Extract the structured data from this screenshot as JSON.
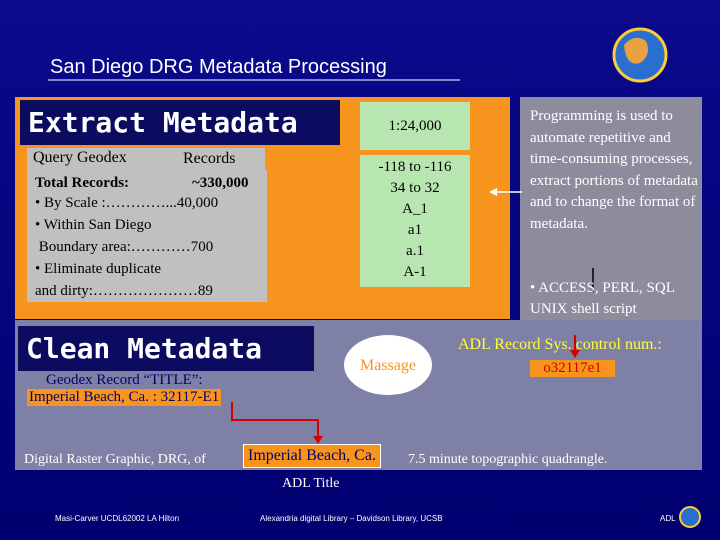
{
  "header": {
    "title": "San Diego DRG Metadata Processing"
  },
  "extract": {
    "title": "Extract Metadata",
    "query": "Query Geodex",
    "records": "Records",
    "total_label": "Total Records:",
    "total_value": "~330,000",
    "lines": [
      "• By Scale :…………...40,000",
      "• Within San Diego",
      " Boundary area:…………700",
      "• Eliminate duplicate",
      "and dirty:…………………89"
    ]
  },
  "scale": "1:24,000",
  "values": [
    "-118 to -116",
    "34 to 32",
    "A_1",
    "a1",
    "a.1",
    "A-1"
  ],
  "notes": {
    "text": "Programming is used to automate repetitive and time-consuming processes, extract portions of metadata and to change the format of metadata.",
    "bullet": "• ACCESS, PERL, SQL UNIX shell script"
  },
  "clean": {
    "title": "Clean Metadata",
    "geodex_label": "Geodex Record “TITLE”:",
    "geodex_value": "Imperial Beach, Ca. : 32117-E1",
    "massage": "Massage",
    "adl_label": "ADL Record Sys. control num.:",
    "adl_value": "o32117e1",
    "drg_prefix": "Digital Raster Graphic, DRG, of",
    "drg_place": "Imperial Beach, Ca.",
    "drg_suffix": "7.5 minute topographic quadrangle.",
    "adl_title": "ADL Title"
  },
  "footer": {
    "left": "Masi-Carver UCDL62002 LA Hilton",
    "center": "Alexandria digital Library – Davidson Library, UCSB",
    "right": "ADL"
  }
}
